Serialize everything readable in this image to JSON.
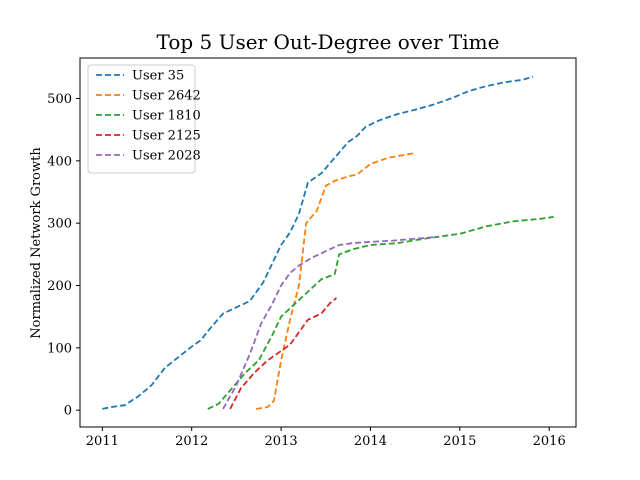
{
  "chart_data": {
    "type": "line",
    "title": "Top 5 User Out-Degree over Time",
    "xlabel": "",
    "ylabel": "Normalized Network Growth",
    "xlim": [
      2010.75,
      2016.3
    ],
    "ylim": [
      -27,
      565
    ],
    "x_ticks": [
      2011,
      2012,
      2013,
      2014,
      2015,
      2016
    ],
    "x_tick_labels": [
      "2011",
      "2012",
      "2013",
      "2014",
      "2015",
      "2016"
    ],
    "y_ticks": [
      0,
      100,
      200,
      300,
      400,
      500
    ],
    "y_tick_labels": [
      "0",
      "100",
      "200",
      "300",
      "400",
      "500"
    ],
    "grid": false,
    "legend_position": "top-left",
    "line_style": "dashed",
    "series": [
      {
        "name": "User 35",
        "color": "#1f77b4",
        "x": [
          2011.0,
          2011.1,
          2011.25,
          2011.4,
          2011.55,
          2011.7,
          2011.85,
          2012.0,
          2012.1,
          2012.2,
          2012.35,
          2012.5,
          2012.65,
          2012.8,
          2012.9,
          2013.0,
          2013.1,
          2013.2,
          2013.3,
          2013.45,
          2013.6,
          2013.75,
          2013.85,
          2013.95,
          2014.1,
          2014.3,
          2014.5,
          2014.7,
          2014.9,
          2015.1,
          2015.3,
          2015.5,
          2015.7,
          2015.82
        ],
        "y": [
          2,
          5,
          8,
          22,
          40,
          68,
          85,
          102,
          112,
          130,
          155,
          165,
          175,
          205,
          235,
          265,
          285,
          315,
          365,
          380,
          405,
          430,
          440,
          455,
          465,
          475,
          482,
          490,
          500,
          512,
          520,
          526,
          530,
          535
        ]
      },
      {
        "name": "User 2642",
        "color": "#ff7f0e",
        "x": [
          2012.72,
          2012.85,
          2012.92,
          2013.0,
          2013.1,
          2013.2,
          2013.28,
          2013.4,
          2013.5,
          2013.6,
          2013.75,
          2013.85,
          2014.0,
          2014.2,
          2014.4,
          2014.48
        ],
        "y": [
          2,
          5,
          15,
          80,
          145,
          200,
          300,
          320,
          360,
          368,
          375,
          378,
          395,
          405,
          410,
          412
        ]
      },
      {
        "name": "User 1810",
        "color": "#2ca02c",
        "x": [
          2012.18,
          2012.3,
          2012.45,
          2012.6,
          2012.75,
          2012.9,
          2013.0,
          2013.15,
          2013.3,
          2013.45,
          2013.6,
          2013.65,
          2013.8,
          2014.0,
          2014.3,
          2014.6,
          2015.0,
          2015.3,
          2015.6,
          2015.9,
          2016.05
        ],
        "y": [
          2,
          10,
          35,
          60,
          80,
          120,
          150,
          170,
          190,
          210,
          218,
          250,
          258,
          265,
          268,
          275,
          283,
          295,
          303,
          307,
          310
        ]
      },
      {
        "name": "User 2125",
        "color": "#d62728",
        "x": [
          2012.43,
          2012.55,
          2012.7,
          2012.85,
          2013.0,
          2013.1,
          2013.2,
          2013.3,
          2013.45,
          2013.55,
          2013.62
        ],
        "y": [
          2,
          35,
          60,
          80,
          95,
          105,
          125,
          145,
          155,
          172,
          180
        ]
      },
      {
        "name": "User 2028",
        "color": "#9467bd",
        "x": [
          2012.35,
          2012.5,
          2012.65,
          2012.78,
          2012.9,
          2013.0,
          2013.1,
          2013.2,
          2013.35,
          2013.5,
          2013.65,
          2013.8,
          2014.0,
          2014.25,
          2014.5,
          2014.75
        ],
        "y": [
          2,
          40,
          90,
          140,
          170,
          200,
          220,
          232,
          245,
          255,
          265,
          268,
          270,
          272,
          275,
          278
        ]
      }
    ]
  }
}
